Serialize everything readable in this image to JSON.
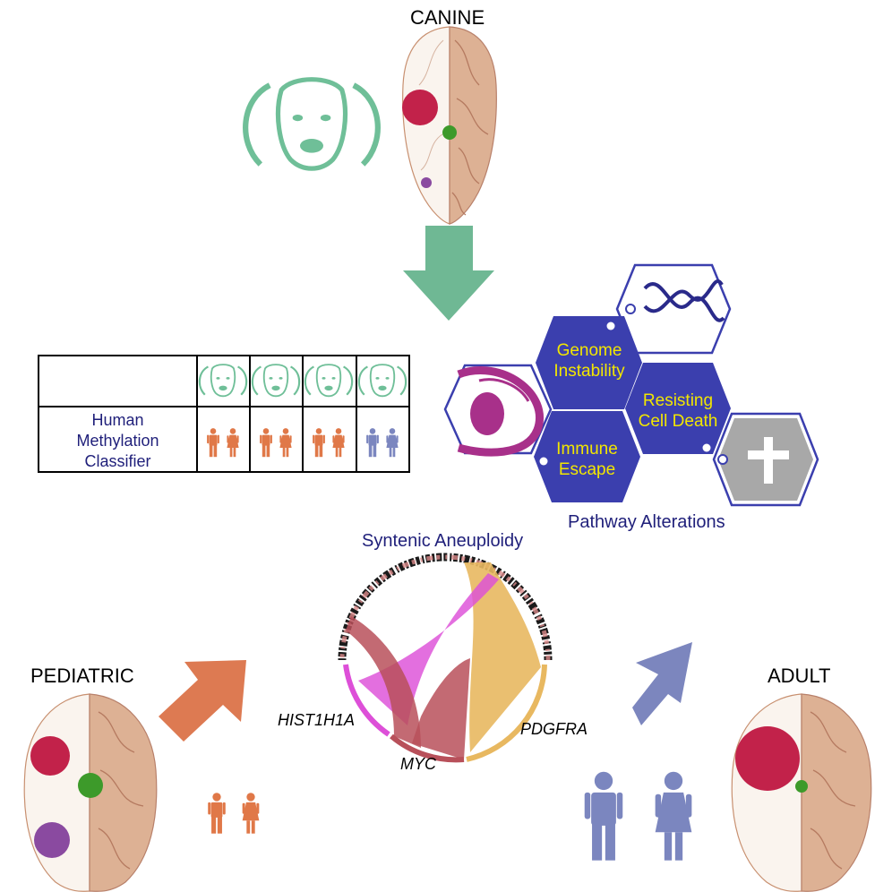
{
  "labels": {
    "canine": "CANINE",
    "pediatric": "PEDIATRIC",
    "adult": "ADULT"
  },
  "classifier": {
    "row_label_lines": [
      "Human",
      "Methylation",
      "Classifier"
    ]
  },
  "pathways": {
    "genome_instability": [
      "Genome",
      "Instability"
    ],
    "resisting_cell_death": [
      "Resisting",
      "Cell Death"
    ],
    "immune_escape": [
      "Immune",
      "Escape"
    ],
    "caption": "Pathway Alterations"
  },
  "circos": {
    "title": "Syntenic Aneuploidy",
    "genes": [
      "HIST1H1A",
      "MYC",
      "PDGFRA"
    ]
  },
  "colors": {
    "canine_green": "#6fbf98",
    "pediatric_orange": "#e07848",
    "adult_blue": "#7b86bf",
    "tumor_red": "#c2224a",
    "tumor_green": "#3d9a2a",
    "tumor_purple": "#8a4aa0",
    "hex_blue": "#3b3fae",
    "link_magenta": "#dd4fd8",
    "link_gold": "#e8b860",
    "link_brick": "#b8505a"
  }
}
